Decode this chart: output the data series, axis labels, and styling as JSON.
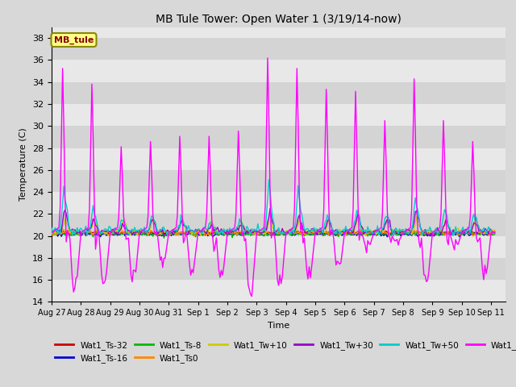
{
  "title": "MB Tule Tower: Open Water 1 (3/19/14-now)",
  "xlabel": "Time",
  "ylabel": "Temperature (C)",
  "ylim": [
    14,
    39
  ],
  "yticks": [
    14,
    16,
    18,
    20,
    22,
    24,
    26,
    28,
    30,
    32,
    34,
    36,
    38
  ],
  "background_color": "#d8d8d8",
  "plot_bg_color": "#e8e8e8",
  "grid_color": "white",
  "series": {
    "Wat1_Ts-32": {
      "color": "#cc0000",
      "lw": 1.0
    },
    "Wat1_Ts-16": {
      "color": "#0000cc",
      "lw": 1.0
    },
    "Wat1_Ts-8": {
      "color": "#00bb00",
      "lw": 1.0
    },
    "Wat1_Ts0": {
      "color": "#ff8800",
      "lw": 1.0
    },
    "Wat1_Tw+10": {
      "color": "#cccc00",
      "lw": 1.0
    },
    "Wat1_Tw+30": {
      "color": "#9900cc",
      "lw": 1.0
    },
    "Wat1_Tw+50": {
      "color": "#00cccc",
      "lw": 1.0
    },
    "Wat1_Tw100": {
      "color": "#ff00ff",
      "lw": 1.0
    }
  },
  "x_tick_labels": [
    "Aug 27",
    "Aug 28",
    "Aug 29",
    "Aug 30",
    "Aug 31",
    "Sep 1",
    "Sep 2",
    "Sep 3",
    "Sep 4",
    "Sep 5",
    "Sep 6",
    "Sep 7",
    "Sep 8",
    "Sep 9",
    "Sep 10",
    "Sep 11"
  ],
  "annotation_text": "MB_tule",
  "stripe_colors": [
    "#e8e8e8",
    "#d4d4d4"
  ]
}
